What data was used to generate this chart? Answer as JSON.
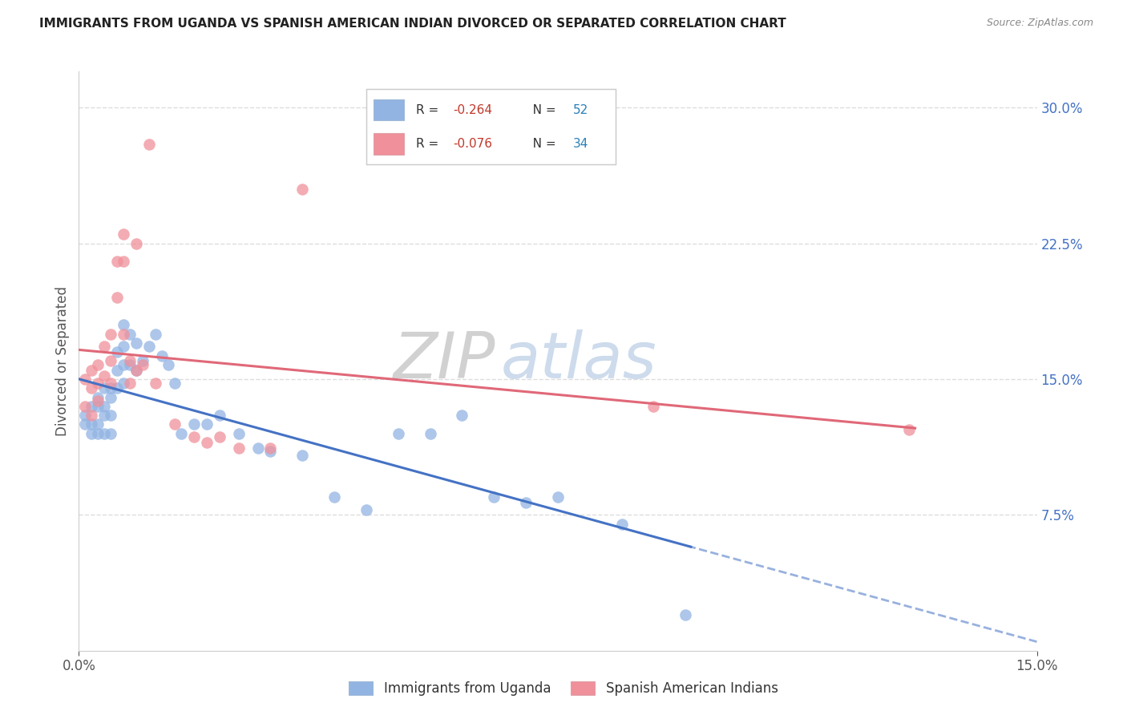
{
  "title": "IMMIGRANTS FROM UGANDA VS SPANISH AMERICAN INDIAN DIVORCED OR SEPARATED CORRELATION CHART",
  "source": "Source: ZipAtlas.com",
  "ylabel": "Divorced or Separated",
  "right_yticks": [
    "7.5%",
    "15.0%",
    "22.5%",
    "30.0%"
  ],
  "right_ytick_vals": [
    0.075,
    0.15,
    0.225,
    0.3
  ],
  "xlim": [
    0.0,
    0.15
  ],
  "ylim": [
    0.0,
    0.32
  ],
  "blue_color": "#92b4e3",
  "pink_color": "#f0909a",
  "blue_line_color": "#4472c4",
  "pink_line_color": "#e06878",
  "legend_blue_R": "-0.264",
  "legend_blue_N": "52",
  "legend_pink_R": "-0.076",
  "legend_pink_N": "34",
  "watermark_ZIP": "ZIP",
  "watermark_atlas": "atlas",
  "blue_x": [
    0.001,
    0.001,
    0.002,
    0.002,
    0.002,
    0.003,
    0.003,
    0.003,
    0.003,
    0.004,
    0.004,
    0.004,
    0.004,
    0.005,
    0.005,
    0.005,
    0.005,
    0.006,
    0.006,
    0.006,
    0.007,
    0.007,
    0.007,
    0.007,
    0.008,
    0.008,
    0.009,
    0.009,
    0.01,
    0.011,
    0.012,
    0.013,
    0.014,
    0.015,
    0.016,
    0.018,
    0.02,
    0.022,
    0.025,
    0.028,
    0.03,
    0.035,
    0.04,
    0.045,
    0.05,
    0.055,
    0.06,
    0.065,
    0.07,
    0.075,
    0.085,
    0.095
  ],
  "blue_y": [
    0.13,
    0.125,
    0.135,
    0.125,
    0.12,
    0.14,
    0.135,
    0.125,
    0.12,
    0.145,
    0.135,
    0.13,
    0.12,
    0.145,
    0.14,
    0.13,
    0.12,
    0.165,
    0.155,
    0.145,
    0.18,
    0.168,
    0.158,
    0.148,
    0.175,
    0.158,
    0.17,
    0.155,
    0.16,
    0.168,
    0.175,
    0.163,
    0.158,
    0.148,
    0.12,
    0.125,
    0.125,
    0.13,
    0.12,
    0.112,
    0.11,
    0.108,
    0.085,
    0.078,
    0.12,
    0.12,
    0.13,
    0.085,
    0.082,
    0.085,
    0.07,
    0.02
  ],
  "pink_x": [
    0.001,
    0.001,
    0.002,
    0.002,
    0.002,
    0.003,
    0.003,
    0.003,
    0.004,
    0.004,
    0.005,
    0.005,
    0.005,
    0.006,
    0.006,
    0.007,
    0.007,
    0.007,
    0.008,
    0.008,
    0.009,
    0.009,
    0.01,
    0.011,
    0.012,
    0.015,
    0.018,
    0.02,
    0.022,
    0.025,
    0.03,
    0.035,
    0.09,
    0.13
  ],
  "pink_y": [
    0.15,
    0.135,
    0.155,
    0.145,
    0.13,
    0.158,
    0.148,
    0.138,
    0.168,
    0.152,
    0.175,
    0.16,
    0.148,
    0.215,
    0.195,
    0.23,
    0.215,
    0.175,
    0.16,
    0.148,
    0.225,
    0.155,
    0.158,
    0.28,
    0.148,
    0.125,
    0.118,
    0.115,
    0.118,
    0.112,
    0.112,
    0.255,
    0.135,
    0.122
  ],
  "grid_color": "#dddddd",
  "background_color": "#ffffff",
  "right_axis_color": "#4472c4",
  "blue_line_x_start": 0.0,
  "blue_line_x_solid_end": 0.095,
  "blue_line_x_end": 0.15,
  "pink_line_x_start": 0.0,
  "pink_line_x_end": 0.13
}
